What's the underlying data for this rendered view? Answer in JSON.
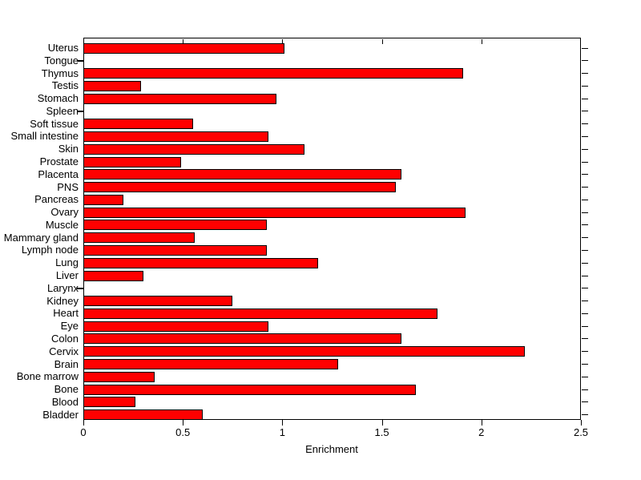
{
  "chart_data": {
    "type": "bar",
    "orientation": "horizontal",
    "title": "",
    "xlabel": "Enrichment",
    "ylabel": "",
    "xlim": [
      0,
      2.5
    ],
    "xtick_values": [
      0,
      0.5,
      1,
      1.5,
      2,
      2.5
    ],
    "xtick_labels": [
      "0",
      "0.5",
      "1",
      "1.5",
      "2",
      "2.5"
    ],
    "grid": false,
    "legend": "none",
    "bar_color": "#ff0000",
    "bar_edge_color": "#000000",
    "axis_color": "#000000",
    "background_color": "#ffffff",
    "categories_top_to_bottom": [
      "Uterus",
      "Tongue",
      "Thymus",
      "Testis",
      "Stomach",
      "Spleen",
      "Soft tissue",
      "Small intestine",
      "Skin",
      "Prostate",
      "Placenta",
      "PNS",
      "Pancreas",
      "Ovary",
      "Muscle",
      "Mammary gland",
      "Lymph node",
      "Lung",
      "Liver",
      "Larynx",
      "Kidney",
      "Heart",
      "Eye",
      "Colon",
      "Cervix",
      "Brain",
      "Bone marrow",
      "Bone",
      "Blood",
      "Bladder"
    ],
    "values": [
      1.01,
      0,
      1.91,
      0.29,
      0.97,
      0,
      0.55,
      0.93,
      1.11,
      0.49,
      1.6,
      1.57,
      0.2,
      1.92,
      0.92,
      0.56,
      0.92,
      1.18,
      0.3,
      0,
      0.75,
      1.78,
      0.93,
      1.6,
      2.22,
      1.28,
      0.36,
      1.67,
      0.26,
      0.6
    ]
  }
}
